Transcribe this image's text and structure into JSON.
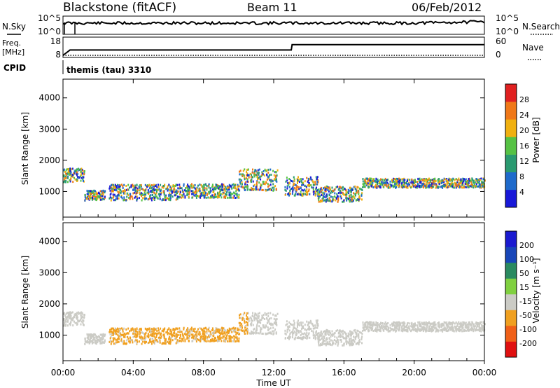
{
  "header": {
    "station": "Blackstone (fitACF)",
    "beam": "Beam 11",
    "date": "06/Feb/2012"
  },
  "panel_labels": {
    "nsky": "N.Sky",
    "nsearch": "N.Search",
    "freq_line1": "Freq.",
    "freq_line2": "[MHz]",
    "nave": "Nave",
    "cpid": "CPID",
    "cpid_value": "themis (tau) 3310"
  },
  "chart_data": [
    {
      "type": "line",
      "title": "N.Sky / N.Search",
      "left_ticks": [
        "10^5",
        "10^0"
      ],
      "right_ticks": [
        "10^5",
        "10^0"
      ],
      "x_range": [
        0,
        24
      ],
      "series": [
        {
          "name": "N.Sky",
          "style": "solid",
          "description_level": "high"
        },
        {
          "name": "N.Search",
          "style": "dotted"
        }
      ]
    },
    {
      "type": "line",
      "left_ticks": [
        "18",
        "8"
      ],
      "right_ticks": [
        "60",
        "0"
      ],
      "freq_mhz": {
        "x": [
          0,
          0.4,
          13.0,
          13.05,
          24
        ],
        "y": [
          8,
          12,
          12,
          16,
          16
        ]
      },
      "nave": {
        "x": [
          0,
          24
        ],
        "y": [
          7,
          7
        ]
      }
    },
    {
      "type": "heatmap",
      "ylabel": "Slant Range [km]",
      "y_ticks": [
        1000,
        2000,
        3000,
        4000
      ],
      "ylim": [
        180,
        4600
      ],
      "colorbar": {
        "label": "Power [dB]",
        "ticks": [
          "28",
          "24",
          "20",
          "16",
          "12",
          "8",
          "4"
        ],
        "colors": [
          "#1818d8",
          "#1e6acb",
          "#2a9a70",
          "#56c244",
          "#f0b010",
          "#f07818",
          "#e02020"
        ]
      }
    },
    {
      "type": "heatmap",
      "ylabel": "Slant Range [km]",
      "xlabel": "Time UT",
      "x_ticks": [
        "00:00",
        "04:00",
        "08:00",
        "12:00",
        "16:00",
        "20:00",
        "00:00"
      ],
      "y_ticks": [
        1000,
        2000,
        3000,
        4000
      ],
      "ylim": [
        180,
        4600
      ],
      "colorbar": {
        "label": "Velocity [m s⁻¹]",
        "ticks": [
          "200",
          "100",
          "50",
          "15",
          "-15",
          "-50",
          "-100",
          "-200"
        ],
        "colors": [
          "#e01010",
          "#f06018",
          "#f0a020",
          "#cbcbc5",
          "#80d040",
          "#2a8a60",
          "#1846b8",
          "#1a1ad0"
        ]
      }
    }
  ]
}
